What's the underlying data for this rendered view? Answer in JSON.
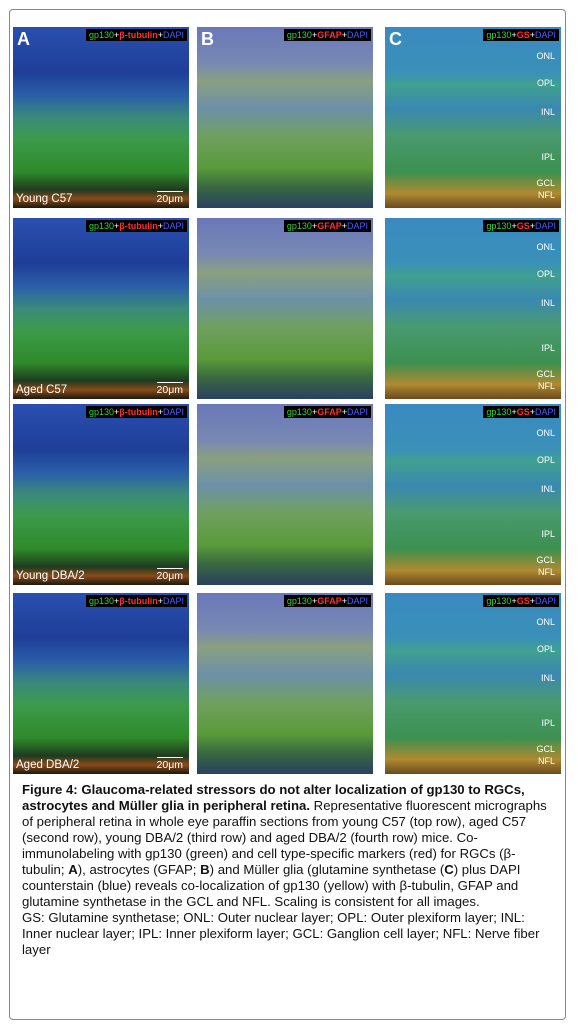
{
  "figure": {
    "panel_letters": [
      "A",
      "B",
      "C"
    ],
    "markers": [
      [
        "gp130",
        "+",
        "β-tubulin",
        "+",
        "DAPI"
      ],
      [
        "gp130",
        "+",
        "GFAP",
        "+",
        "DAPI"
      ],
      [
        "gp130",
        "+",
        "GS",
        "+",
        "DAPI"
      ]
    ],
    "rows": [
      {
        "label": "Young C57",
        "scale": "20μm",
        "layers": [
          "ONL",
          "OPL",
          "INL",
          "IPL",
          "GCL",
          "NFL"
        ]
      },
      {
        "label": "Aged C57",
        "scale": "20μm",
        "layers": [
          "ONL",
          "OPL",
          "INL",
          "IPL",
          "GCL",
          "NFL"
        ]
      },
      {
        "label": "Young DBA/2",
        "scale": "20μm",
        "layers": [
          "ONL",
          "OPL",
          "INL",
          "IPL",
          "GCL",
          "NFL"
        ]
      },
      {
        "label": "Aged DBA/2",
        "scale": "20μm",
        "layers": [
          "ONL",
          "OPL",
          "INL",
          "IPL",
          "GCL",
          "NFL"
        ]
      }
    ],
    "caption": {
      "title": "Figure 4: Glaucoma-related stressors do not alter localization of gp130 to RGCs, astrocytes and Müller glia in peripheral retina.",
      "body": [
        {
          "text": " Representative fluorescent micrographs of peripheral retina in whole eye paraffin sections from young C57 (top row), aged C57 (second row), young DBA/2 (third row) and aged DBA/2 (fourth row) mice. Co-immunolabeling with gp130 (green) and cell type-specific markers (red) for RGCs (β-tubulin; ",
          "bold": false
        },
        {
          "text": "A",
          "bold": true
        },
        {
          "text": "), astrocytes (GFAP; ",
          "bold": false
        },
        {
          "text": "B",
          "bold": true
        },
        {
          "text": ") and Müller glia (glutamine synthetase (",
          "bold": false
        },
        {
          "text": "C",
          "bold": true
        },
        {
          "text": ") plus DAPI counterstain (blue) reveals co-localization of gp130 (yellow) with β-tubulin, GFAP and glutamine synthetase in the GCL and NFL. Scaling is consistent for all images.",
          "bold": false
        }
      ],
      "abbreviations": "GS: Glutamine synthetase; ONL: Outer nuclear layer; OPL: Outer plexiform layer; INL: Inner nuclear layer; IPL: Inner plexiform layer; GCL: Ganglion cell layer; NFL: Nerve fiber layer"
    }
  }
}
